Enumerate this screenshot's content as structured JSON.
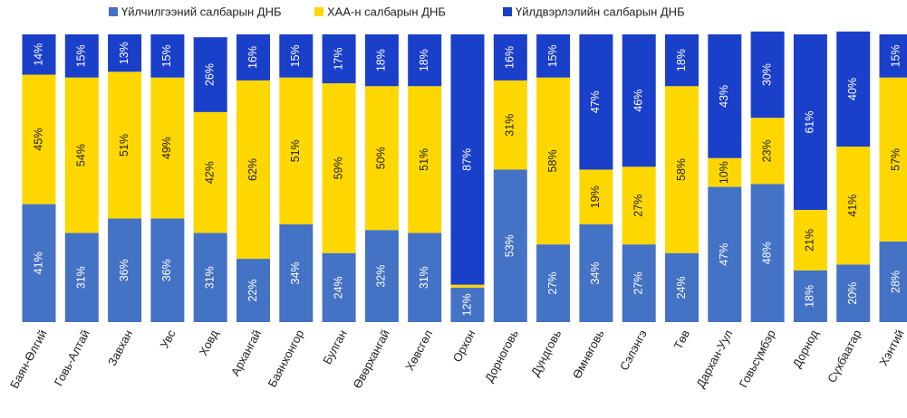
{
  "chart_data": {
    "type": "stacked_bar",
    "categories": [
      "Баян-Өлгий",
      "Говь-Алтай",
      "Завхан",
      "Увс",
      "Ховд",
      "Архангай",
      "Баянхонгор",
      "Булган",
      "Өвөрхангай",
      "Хөвсгөл",
      "Орхон",
      "Дорноговь",
      "Дундговь",
      "Өмнөговь",
      "Сэлэнгэ",
      "Төв",
      "Дархан-Уул",
      "Говьсүмбэр",
      "Дорнод",
      "Сүхбаатар",
      "Хэнтий"
    ],
    "ylim": [
      0,
      100
    ],
    "series": [
      {
        "name": "Үйлчилгээний салбарын ДНБ",
        "color": "#4472c4",
        "values": [
          41,
          31,
          36,
          36,
          31,
          22,
          34,
          24,
          32,
          31,
          12,
          53,
          27,
          34,
          27,
          24,
          47,
          48,
          18,
          20,
          28
        ],
        "value_labels": [
          "41%",
          "31%",
          "36%",
          "36%",
          "31%",
          "22%",
          "34%",
          "24%",
          "32%",
          "31%",
          "12%",
          "53%",
          "27%",
          "34%",
          "27%",
          "24%",
          "47%",
          "48%",
          "18%",
          "20%",
          "28%"
        ]
      },
      {
        "name": "ХАА-н салбарын ДНБ",
        "color": "#ffd700",
        "values": [
          45,
          54,
          51,
          49,
          42,
          62,
          51,
          59,
          50,
          51,
          1,
          31,
          58,
          19,
          27,
          58,
          10,
          23,
          21,
          41,
          57
        ],
        "value_labels": [
          "45%",
          "54%",
          "51%",
          "49%",
          "42%",
          "62%",
          "51%",
          "59%",
          "50%",
          "51%",
          null,
          "31%",
          "58%",
          "19%",
          "27%",
          "58%",
          "10%",
          "23%",
          "21%",
          "41%",
          "57%"
        ]
      },
      {
        "name": "Үйлдвэрлэлийн салбарын ДНБ",
        "color": "#1a3fc9",
        "values": [
          14,
          15,
          13,
          15,
          26,
          16,
          15,
          17,
          18,
          18,
          87,
          16,
          15,
          47,
          46,
          18,
          43,
          30,
          61,
          40,
          15
        ],
        "value_labels": [
          "14%",
          "15%",
          "13%",
          "15%",
          "26%",
          "16%",
          "15%",
          "17%",
          "18%",
          "18%",
          "87%",
          "16%",
          "15%",
          "47%",
          "46%",
          "18%",
          "43%",
          "30%",
          "61%",
          "40%",
          "15%"
        ]
      }
    ]
  }
}
